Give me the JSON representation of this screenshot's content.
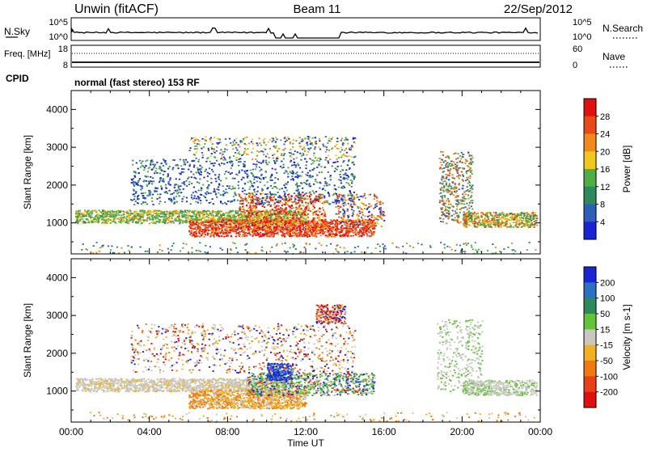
{
  "header": {
    "station": "Unwin (fitACF)",
    "beam": "Beam 11",
    "date": "22/Sep/2012"
  },
  "top_panels": {
    "nsky": {
      "label": "N.Sky",
      "ticks": [
        "10^5",
        "10^0"
      ]
    },
    "nsearch": {
      "label": "N.Search",
      "ticks": [
        "10^5",
        "10^0"
      ]
    },
    "freq": {
      "label": "Freq. [MHz]",
      "ticks": [
        "18",
        "8"
      ]
    },
    "nave": {
      "label": "Nave",
      "ticks": [
        "60",
        "0"
      ]
    },
    "cpid": {
      "label": "CPID",
      "value": "normal (fast stereo) 153 RF"
    }
  },
  "chart_data": [
    {
      "type": "heatmap",
      "quantity": "power",
      "xlabel": "Time UT",
      "ylabel": "Slant Range [km]",
      "x_ticks": [
        "00:00",
        "04:00",
        "08:00",
        "12:00",
        "16:00",
        "20:00",
        "00:00"
      ],
      "xlim_hours": [
        0,
        24
      ],
      "ylim": [
        180,
        4500
      ],
      "y_ticks": [
        1000,
        2000,
        3000,
        4000
      ],
      "colorbar": {
        "label": "Power [dB]",
        "range": [
          0,
          32
        ],
        "ticks": [
          "4",
          "8",
          "12",
          "16",
          "20",
          "24",
          "28"
        ]
      },
      "colors": [
        "#1a23d6",
        "#2d5fb8",
        "#2e8a5c",
        "#4fae45",
        "#f2c81e",
        "#f08a1a",
        "#e8491a",
        "#e01010"
      ]
    },
    {
      "type": "heatmap",
      "quantity": "velocity",
      "xlabel": "Time UT",
      "ylabel": "Slant Range [km]",
      "x_ticks": [
        "00:00",
        "04:00",
        "08:00",
        "12:00",
        "16:00",
        "20:00",
        "00:00"
      ],
      "xlim_hours": [
        0,
        24
      ],
      "ylim": [
        180,
        4500
      ],
      "y_ticks": [
        1000,
        2000,
        3000,
        4000
      ],
      "colorbar": {
        "label": "Velocity [m s-1]",
        "ticks": [
          "200",
          "100",
          "50",
          "15",
          "-15",
          "-50",
          "-100",
          "-200"
        ]
      },
      "colors": [
        "#1a23d6",
        "#2d6fc0",
        "#2e8a5c",
        "#63c43a",
        "#c8c8c0",
        "#f2b024",
        "#ef7a14",
        "#e8401a",
        "#e01010"
      ]
    }
  ]
}
